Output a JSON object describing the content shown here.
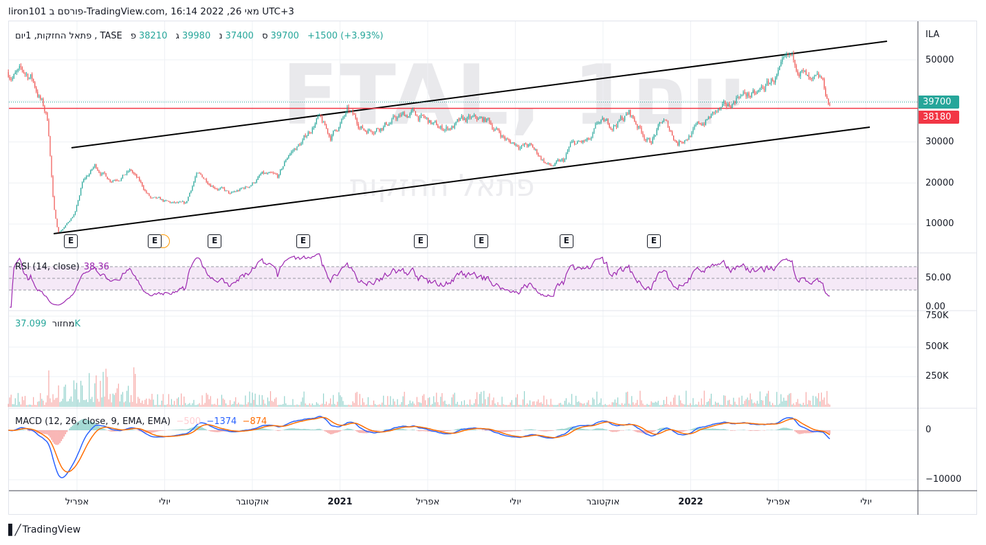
{
  "header": {
    "published": "liron101 פורסם ב-TradingView.com, 16:14 2022 ,26 מאי UTC+3"
  },
  "legend": {
    "name": "פתאל החזקות, 1יום",
    "exchange": "TASE",
    "open_label": "פ",
    "open": "38210",
    "high_label": "ג",
    "high": "39980",
    "low_label": "נ",
    "low": "37400",
    "close_label": "ס",
    "close": "39700",
    "change": "+1500 (+3.93%)"
  },
  "watermark": {
    "symbol": "FTAL, 1יום",
    "name": "פתאל החזקות"
  },
  "price_axis": {
    "currency": "ILA",
    "ticks": [
      "50000",
      "30000",
      "20000",
      "10000"
    ],
    "ticks_full": [
      50000,
      30000,
      20000,
      10000
    ],
    "last_price": "39700",
    "line_price": "38180"
  },
  "rsi": {
    "label": "RSI (14, close)",
    "value": "38.36",
    "ticks": [
      "50.00",
      "0.00"
    ]
  },
  "volume": {
    "label": "מחזור",
    "value": "37.099K",
    "ticks": [
      "750K",
      "500K",
      "250K"
    ]
  },
  "macd": {
    "label": "MACD (12, 26, close, 9, EMA, EMA)",
    "hist": "−500",
    "macd": "−1374",
    "signal": "−874",
    "ticks": [
      "0",
      "−10000"
    ]
  },
  "time_axis": [
    {
      "label": "אפריל",
      "t": 3
    },
    {
      "label": "יולי",
      "t": 6
    },
    {
      "label": "אוקטובר",
      "t": 9
    },
    {
      "label": "2021",
      "t": 12,
      "bold": true
    },
    {
      "label": "אפריל",
      "t": 15
    },
    {
      "label": "יולי",
      "t": 18
    },
    {
      "label": "אוקטובר",
      "t": 21
    },
    {
      "label": "2022",
      "t": 24,
      "bold": true
    },
    {
      "label": "אפריל",
      "t": 27
    },
    {
      "label": "יולי",
      "t": 30
    }
  ],
  "earnings": {
    "label": "E",
    "t": [
      2.79,
      5.66,
      7.71,
      10.74,
      14.76,
      16.84,
      19.75,
      22.74
    ]
  },
  "colors": {
    "up": "#26a69a",
    "down": "#ef5350",
    "rsi": "#9c27b0",
    "macd": "#2962ff",
    "signal": "#ff6d00",
    "hline": "#f23645"
  },
  "chart_data": {
    "type": "candlestick",
    "time_unit": "months since Jan 2020",
    "price_path": [
      [
        0.65,
        47000
      ],
      [
        1.42,
        46000
      ],
      [
        1.78,
        40000
      ],
      [
        2.01,
        35000
      ],
      [
        2.2,
        14000
      ],
      [
        2.36,
        8000
      ],
      [
        2.6,
        9500
      ],
      [
        2.95,
        13000
      ],
      [
        3.19,
        20000
      ],
      [
        3.61,
        24000
      ],
      [
        4.13,
        21000
      ],
      [
        4.84,
        23000
      ],
      [
        5.54,
        16000
      ],
      [
        6.13,
        15000
      ],
      [
        6.72,
        14500
      ],
      [
        7.07,
        22000
      ],
      [
        7.89,
        19000
      ],
      [
        8.25,
        17000
      ],
      [
        8.84,
        19000
      ],
      [
        9.31,
        22000
      ],
      [
        9.89,
        21000
      ],
      [
        10.25,
        27000
      ],
      [
        10.72,
        30000
      ],
      [
        11.24,
        36000
      ],
      [
        11.66,
        31000
      ],
      [
        12.25,
        37000
      ],
      [
        12.84,
        33000
      ],
      [
        13.66,
        35000
      ],
      [
        14.48,
        37000
      ],
      [
        15.42,
        33000
      ],
      [
        16.36,
        35000
      ],
      [
        17.07,
        35000
      ],
      [
        17.78,
        30000
      ],
      [
        18.48,
        29000
      ],
      [
        19.19,
        24000
      ],
      [
        19.66,
        25000
      ],
      [
        19.89,
        29000
      ],
      [
        20.6,
        30000
      ],
      [
        20.84,
        34000
      ],
      [
        21.31,
        34000
      ],
      [
        21.89,
        37000
      ],
      [
        22.6,
        30000
      ],
      [
        23.07,
        35000
      ],
      [
        23.54,
        30000
      ],
      [
        24.13,
        33000
      ],
      [
        24.84,
        37000
      ],
      [
        25.31,
        38000
      ],
      [
        25.66,
        42000
      ],
      [
        26.25,
        41000
      ],
      [
        26.95,
        46000
      ],
      [
        27.42,
        49000
      ],
      [
        27.78,
        48000
      ],
      [
        28.13,
        43000
      ],
      [
        28.48,
        44000
      ],
      [
        28.76,
        38500
      ]
    ],
    "trendlines": [
      {
        "from": [
          2.81,
          28577
        ],
        "to": [
          30.72,
          54519
        ]
      },
      {
        "from": [
          2.2,
          7657
        ],
        "to": [
          30.13,
          33598
        ]
      }
    ],
    "horizontal_line": 38180,
    "ylim": [
      5000,
      56000
    ]
  }
}
